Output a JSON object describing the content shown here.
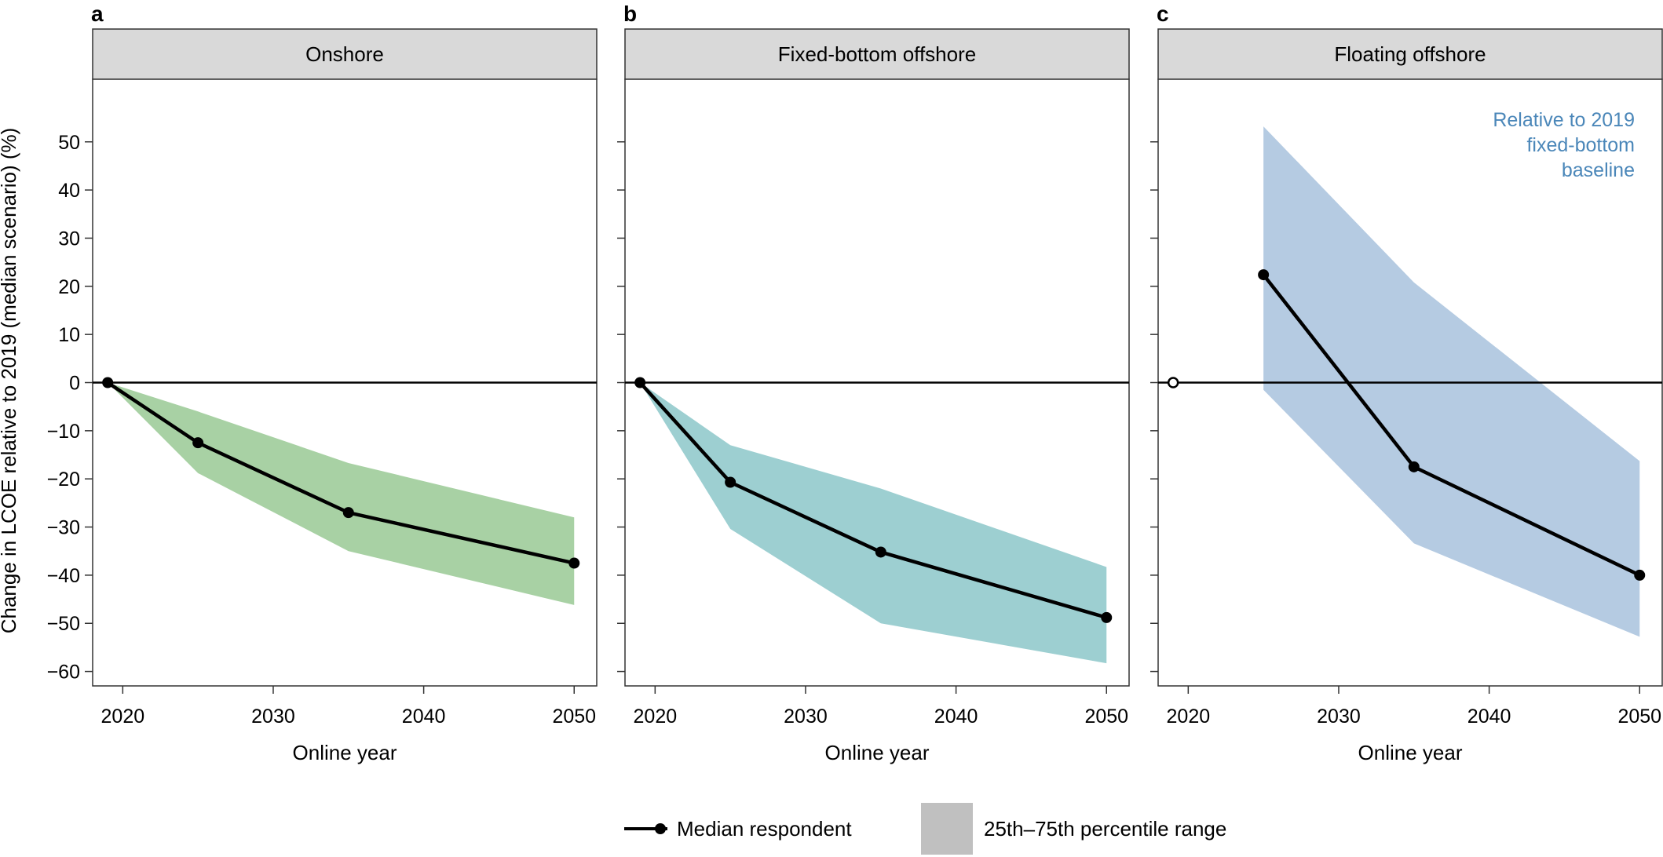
{
  "ylabel": "Change in LCOE relative to 2019 (median scenario) (%)",
  "yticks": [
    50,
    40,
    30,
    20,
    10,
    0,
    -10,
    -20,
    -30,
    -40,
    -50,
    -60
  ],
  "xticks": [
    2020,
    2030,
    2040,
    2050
  ],
  "legend": {
    "median_label": "Median respondent",
    "range_label": "25th–75th percentile range",
    "range_swatch_color": "#c0c0c0"
  },
  "chart_data": [
    {
      "type": "line",
      "panel_letter": "a",
      "title": "Onshore",
      "xlabel": "Online year",
      "ylabel": "Change in LCOE relative to 2019 (median scenario) (%)",
      "xlim": [
        2018,
        2051.5
      ],
      "ylim": [
        -63,
        63
      ],
      "color": "#a8d1a4",
      "series": [
        {
          "name": "Median respondent",
          "x": [
            2019,
            2025,
            2035,
            2050
          ],
          "y": [
            0,
            -12.5,
            -27,
            -37.5
          ]
        }
      ],
      "range": {
        "x": [
          2019,
          2025,
          2035,
          2050
        ],
        "lower": [
          0,
          -18.8,
          -35,
          -46.2
        ],
        "upper": [
          0,
          -6,
          -16.7,
          -28
        ]
      }
    },
    {
      "type": "line",
      "panel_letter": "b",
      "title": "Fixed-bottom offshore",
      "xlabel": "Online year",
      "xlim": [
        2018,
        2051.5
      ],
      "ylim": [
        -63,
        63
      ],
      "color": "#9dcfd1",
      "series": [
        {
          "name": "Median respondent",
          "x": [
            2019,
            2025,
            2035,
            2050
          ],
          "y": [
            0,
            -20.7,
            -35.2,
            -48.8
          ]
        }
      ],
      "range": {
        "x": [
          2019,
          2025,
          2035,
          2050
        ],
        "lower": [
          0,
          -30.4,
          -50,
          -58.3
        ],
        "upper": [
          0,
          -13,
          -22,
          -38.3
        ]
      }
    },
    {
      "type": "line",
      "panel_letter": "c",
      "title": "Floating offshore",
      "xlabel": "Online year",
      "xlim": [
        2018,
        2051.5
      ],
      "ylim": [
        -63,
        63
      ],
      "color": "#b5cbe2",
      "annotation": {
        "lines": [
          "Relative to 2019",
          "fixed-bottom",
          "baseline"
        ],
        "color": "#4b87b9"
      },
      "baseline_point": {
        "x": 2019,
        "y": 0
      },
      "series": [
        {
          "name": "Median respondent",
          "x": [
            2025,
            2035,
            2050
          ],
          "y": [
            22.4,
            -17.5,
            -40
          ]
        }
      ],
      "range": {
        "x": [
          2025,
          2035,
          2050
        ],
        "lower": [
          -1.5,
          -33.4,
          -52.8
        ],
        "upper": [
          53.2,
          20.8,
          -16.3
        ]
      }
    }
  ]
}
